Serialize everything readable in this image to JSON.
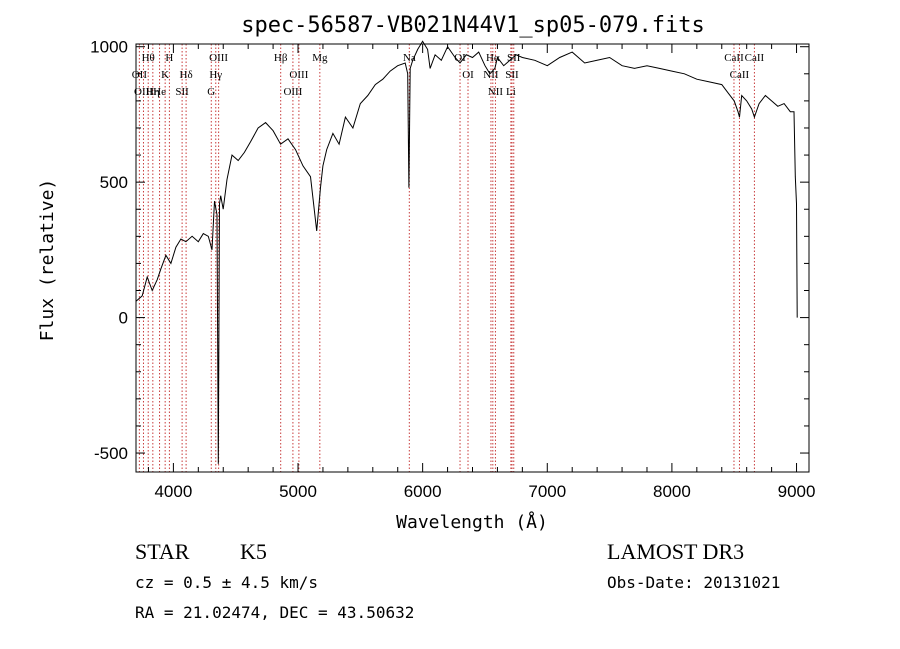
{
  "chart_data": {
    "type": "line",
    "title": "spec-56587-VB021N44V1_sp05-079.fits",
    "xlabel": "Wavelength (Å)",
    "ylabel": "Flux (relative)",
    "xlim": [
      3700,
      9100
    ],
    "ylim": [
      -570,
      1010
    ],
    "x_ticks": [
      4000,
      5000,
      6000,
      7000,
      8000,
      9000
    ],
    "y_ticks": [
      -500,
      0,
      500,
      1000
    ],
    "series": [
      {
        "name": "flux",
        "x": [
          3700,
          3750,
          3790,
          3830,
          3870,
          3900,
          3940,
          3980,
          4020,
          4060,
          4100,
          4150,
          4200,
          4240,
          4280,
          4310,
          4330,
          4350,
          4360,
          4370,
          4380,
          4400,
          4430,
          4470,
          4520,
          4570,
          4620,
          4680,
          4740,
          4800,
          4860,
          4920,
          4980,
          5040,
          5100,
          5150,
          5180,
          5200,
          5230,
          5280,
          5330,
          5380,
          5440,
          5500,
          5560,
          5620,
          5680,
          5740,
          5800,
          5860,
          5880,
          5890,
          5900,
          5920,
          5960,
          6000,
          6040,
          6060,
          6100,
          6150,
          6200,
          6260,
          6300,
          6350,
          6400,
          6450,
          6500,
          6540,
          6560,
          6580,
          6600,
          6650,
          6700,
          6750,
          6800,
          6900,
          7000,
          7100,
          7200,
          7300,
          7400,
          7500,
          7600,
          7700,
          7800,
          7900,
          8000,
          8100,
          8200,
          8300,
          8400,
          8450,
          8500,
          8530,
          8542,
          8560,
          8600,
          8640,
          8662,
          8700,
          8750,
          8800,
          8850,
          8900,
          8950,
          8980,
          8990,
          9000,
          9005
        ],
        "y": [
          60,
          80,
          150,
          100,
          140,
          180,
          230,
          200,
          260,
          290,
          280,
          300,
          280,
          310,
          300,
          250,
          430,
          380,
          -540,
          420,
          450,
          400,
          510,
          600,
          580,
          610,
          650,
          700,
          720,
          690,
          640,
          660,
          620,
          560,
          520,
          320,
          480,
          560,
          620,
          680,
          640,
          740,
          700,
          790,
          820,
          860,
          880,
          910,
          930,
          940,
          900,
          480,
          920,
          950,
          990,
          1020,
          990,
          920,
          970,
          950,
          1000,
          960,
          940,
          970,
          960,
          980,
          930,
          900,
          910,
          920,
          960,
          930,
          950,
          970,
          960,
          950,
          930,
          960,
          980,
          940,
          950,
          960,
          930,
          920,
          930,
          920,
          910,
          900,
          880,
          870,
          860,
          830,
          800,
          760,
          740,
          820,
          800,
          770,
          740,
          790,
          820,
          800,
          780,
          790,
          760,
          760,
          520,
          420,
          0
        ]
      }
    ],
    "lines": [
      {
        "name": "Hθ",
        "wave": 3798
      },
      {
        "name": "OII",
        "wave": 3727
      },
      {
        "name": "OIII",
        "wave": 3760
      },
      {
        "name": "Hη",
        "wave": 3835
      },
      {
        "name": "K",
        "wave": 3934
      },
      {
        "name": "He",
        "wave": 3889
      },
      {
        "name": "H",
        "wave": 3968
      },
      {
        "name": "Hδ",
        "wave": 4102
      },
      {
        "name": "SII",
        "wave": 4070
      },
      {
        "name": "OIII",
        "wave": 4363
      },
      {
        "name": "Hγ",
        "wave": 4340
      },
      {
        "name": "G",
        "wave": 4304
      },
      {
        "name": "Hβ",
        "wave": 4861
      },
      {
        "name": "OIII",
        "wave": 5007
      },
      {
        "name": "OIII",
        "wave": 4959
      },
      {
        "name": "Mg",
        "wave": 5175
      },
      {
        "name": "Na",
        "wave": 5893
      },
      {
        "name": "OI",
        "wave": 6300
      },
      {
        "name": "OI",
        "wave": 6364
      },
      {
        "name": "Hα",
        "wave": 6563
      },
      {
        "name": "NII",
        "wave": 6548
      },
      {
        "name": "NII",
        "wave": 6584
      },
      {
        "name": "SII",
        "wave": 6717
      },
      {
        "name": "SII",
        "wave": 6731
      },
      {
        "name": "Li",
        "wave": 6708
      },
      {
        "name": "CaII",
        "wave": 8498
      },
      {
        "name": "CaII",
        "wave": 8542
      },
      {
        "name": "CaII",
        "wave": 8662
      }
    ],
    "line_color": "#c83c3c",
    "grid": false
  },
  "info": {
    "object_class": "STAR",
    "subclass": "K5",
    "survey": "LAMOST DR3",
    "cz": "cz = 0.5 ± 4.5 km/s",
    "obs_date": "Obs-Date: 20131021",
    "coords": "RA =  21.02474, DEC =  43.50632"
  }
}
